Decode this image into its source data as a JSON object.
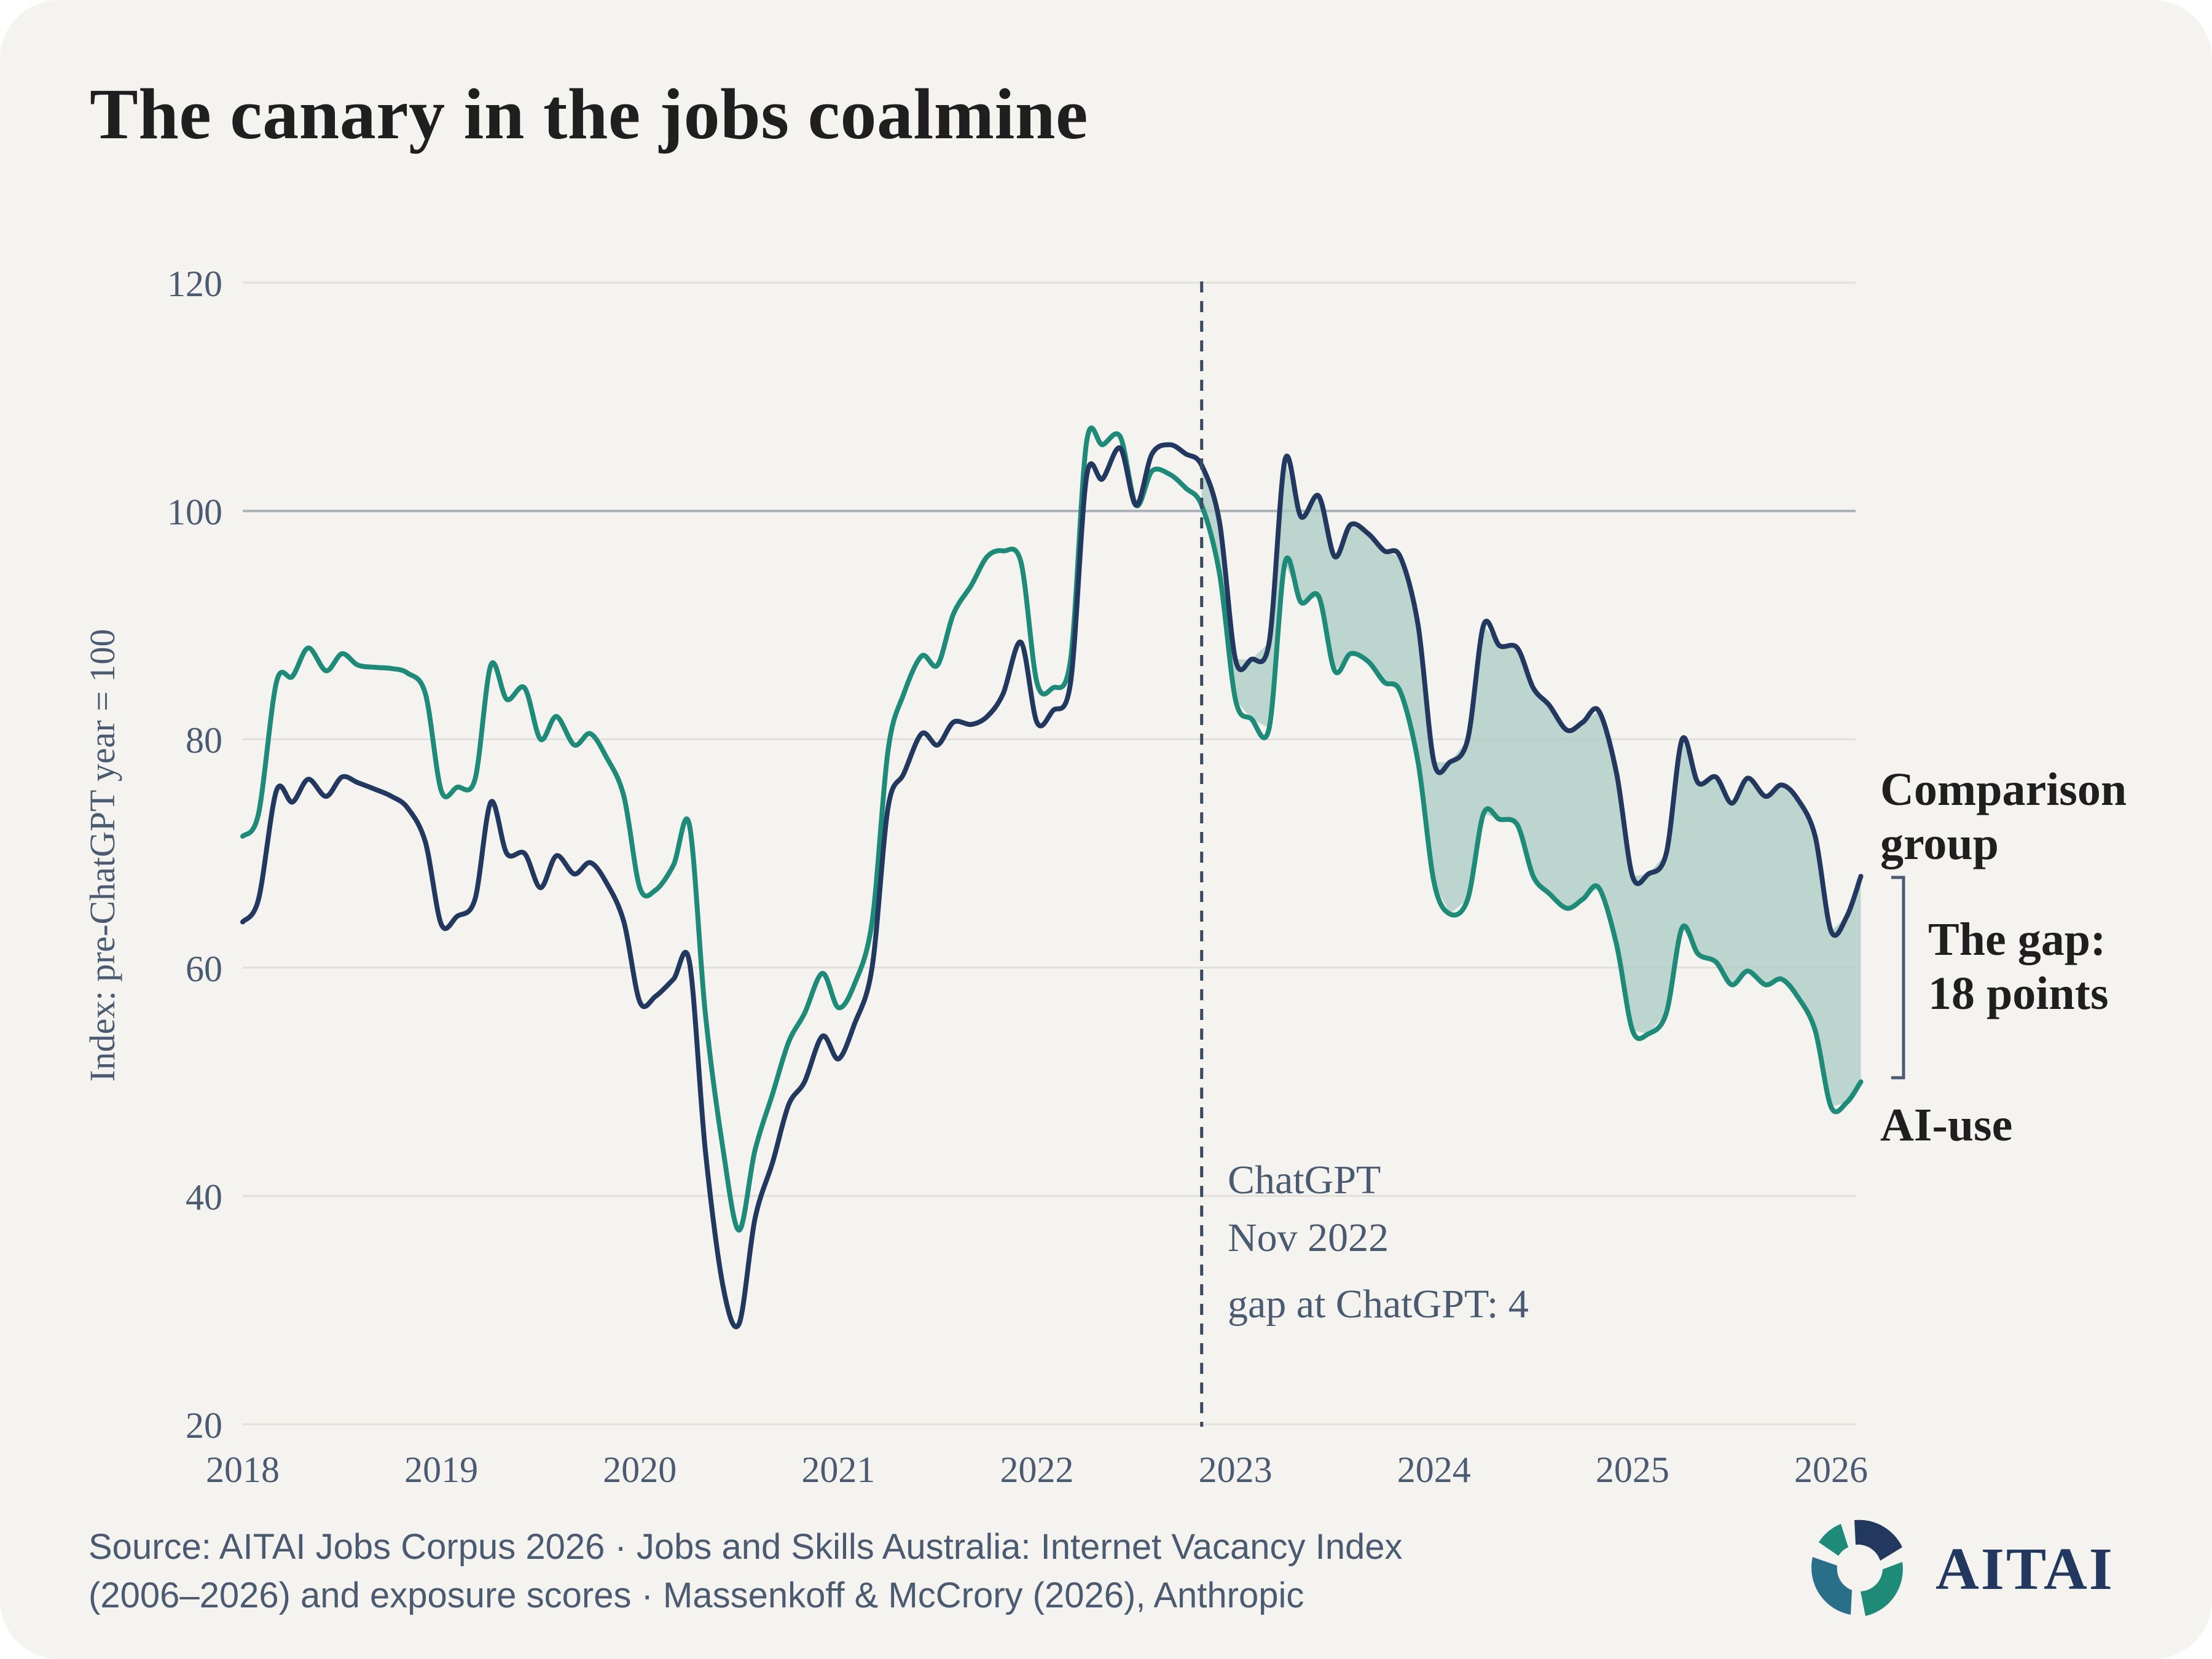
{
  "header": {
    "title": "The canary in the jobs coalmine"
  },
  "chart_data": {
    "type": "line",
    "ylabel": "Index: pre-ChatGPT year = 100",
    "xlabel": "",
    "ylim": [
      20,
      120
    ],
    "xlim": [
      2018,
      2026
    ],
    "y_ticks": [
      "20",
      "40",
      "60",
      "80",
      "100",
      "120"
    ],
    "x_ticks": [
      "2018",
      "2019",
      "2020",
      "2021",
      "2022",
      "2023",
      "2024",
      "2025",
      "2026"
    ],
    "reference_line": 100,
    "grid": true,
    "series": [
      {
        "name": "Comparison group",
        "color": "#22385f",
        "points": [
          [
            2018.0,
            64
          ],
          [
            2018.08,
            66
          ],
          [
            2018.17,
            75.5
          ],
          [
            2018.25,
            74.5
          ],
          [
            2018.33,
            76.5
          ],
          [
            2018.42,
            75
          ],
          [
            2018.5,
            76.7
          ],
          [
            2018.58,
            76.2
          ],
          [
            2018.67,
            75.6
          ],
          [
            2018.75,
            75
          ],
          [
            2018.83,
            74
          ],
          [
            2018.92,
            71
          ],
          [
            2019.0,
            63.8
          ],
          [
            2019.08,
            64.5
          ],
          [
            2019.17,
            66
          ],
          [
            2019.25,
            74.5
          ],
          [
            2019.33,
            70
          ],
          [
            2019.42,
            70
          ],
          [
            2019.5,
            67
          ],
          [
            2019.58,
            69.8
          ],
          [
            2019.67,
            68.2
          ],
          [
            2019.75,
            69.2
          ],
          [
            2019.83,
            67.5
          ],
          [
            2019.92,
            64
          ],
          [
            2020.0,
            57
          ],
          [
            2020.08,
            57.5
          ],
          [
            2020.17,
            59
          ],
          [
            2020.25,
            60.5
          ],
          [
            2020.33,
            44
          ],
          [
            2020.42,
            32
          ],
          [
            2020.5,
            28.8
          ],
          [
            2020.58,
            38
          ],
          [
            2020.67,
            43
          ],
          [
            2020.75,
            48
          ],
          [
            2020.83,
            50
          ],
          [
            2020.92,
            54
          ],
          [
            2021.0,
            52
          ],
          [
            2021.08,
            55
          ],
          [
            2021.17,
            60
          ],
          [
            2021.25,
            74
          ],
          [
            2021.33,
            77
          ],
          [
            2021.42,
            80.5
          ],
          [
            2021.5,
            79.5
          ],
          [
            2021.58,
            81.5
          ],
          [
            2021.67,
            81.3
          ],
          [
            2021.75,
            82
          ],
          [
            2021.83,
            84
          ],
          [
            2021.92,
            88.5
          ],
          [
            2022.0,
            81.5
          ],
          [
            2022.08,
            82.5
          ],
          [
            2022.17,
            85
          ],
          [
            2022.25,
            103
          ],
          [
            2022.33,
            102.8
          ],
          [
            2022.42,
            105.5
          ],
          [
            2022.5,
            100.5
          ],
          [
            2022.58,
            105
          ],
          [
            2022.67,
            105.8
          ],
          [
            2022.75,
            105
          ],
          [
            2022.83,
            104
          ],
          [
            2022.92,
            99
          ],
          [
            2023.0,
            87
          ],
          [
            2023.08,
            87
          ],
          [
            2023.17,
            88.5
          ],
          [
            2023.25,
            104.5
          ],
          [
            2023.33,
            99.5
          ],
          [
            2023.42,
            101.3
          ],
          [
            2023.5,
            96
          ],
          [
            2023.58,
            98.8
          ],
          [
            2023.67,
            98
          ],
          [
            2023.75,
            96.5
          ],
          [
            2023.83,
            96
          ],
          [
            2023.92,
            90
          ],
          [
            2024.0,
            78
          ],
          [
            2024.08,
            78
          ],
          [
            2024.17,
            80
          ],
          [
            2024.25,
            90
          ],
          [
            2024.33,
            88.2
          ],
          [
            2024.42,
            88
          ],
          [
            2024.5,
            84.5
          ],
          [
            2024.58,
            83
          ],
          [
            2024.67,
            80.8
          ],
          [
            2024.75,
            81.5
          ],
          [
            2024.83,
            82.5
          ],
          [
            2024.92,
            77
          ],
          [
            2025.0,
            68
          ],
          [
            2025.08,
            68.2
          ],
          [
            2025.17,
            70
          ],
          [
            2025.25,
            80
          ],
          [
            2025.33,
            76.2
          ],
          [
            2025.42,
            76.7
          ],
          [
            2025.5,
            74.4
          ],
          [
            2025.58,
            76.6
          ],
          [
            2025.67,
            75
          ],
          [
            2025.75,
            76
          ],
          [
            2025.83,
            74.8
          ],
          [
            2025.92,
            71.5
          ],
          [
            2026.0,
            63.2
          ],
          [
            2026.08,
            64.5
          ],
          [
            2026.15,
            68
          ]
        ]
      },
      {
        "name": "AI-use",
        "color": "#1e8a78",
        "points": [
          [
            2018.0,
            71.5
          ],
          [
            2018.08,
            73.5
          ],
          [
            2018.17,
            85
          ],
          [
            2018.25,
            85.5
          ],
          [
            2018.33,
            88
          ],
          [
            2018.42,
            86
          ],
          [
            2018.5,
            87.5
          ],
          [
            2018.58,
            86.5
          ],
          [
            2018.67,
            86.3
          ],
          [
            2018.75,
            86.2
          ],
          [
            2018.83,
            85.8
          ],
          [
            2018.92,
            84
          ],
          [
            2019.0,
            75.5
          ],
          [
            2019.08,
            75.8
          ],
          [
            2019.17,
            76.5
          ],
          [
            2019.25,
            86.5
          ],
          [
            2019.33,
            83.5
          ],
          [
            2019.42,
            84.5
          ],
          [
            2019.5,
            80
          ],
          [
            2019.58,
            82
          ],
          [
            2019.67,
            79.5
          ],
          [
            2019.75,
            80.5
          ],
          [
            2019.83,
            78.5
          ],
          [
            2019.92,
            75
          ],
          [
            2020.0,
            67
          ],
          [
            2020.08,
            66.8
          ],
          [
            2020.17,
            69
          ],
          [
            2020.25,
            72.5
          ],
          [
            2020.33,
            56
          ],
          [
            2020.42,
            44
          ],
          [
            2020.5,
            37
          ],
          [
            2020.58,
            44
          ],
          [
            2020.67,
            49
          ],
          [
            2020.75,
            53.5
          ],
          [
            2020.83,
            56
          ],
          [
            2020.92,
            59.5
          ],
          [
            2021.0,
            56.5
          ],
          [
            2021.08,
            58.5
          ],
          [
            2021.17,
            64
          ],
          [
            2021.25,
            79
          ],
          [
            2021.33,
            84
          ],
          [
            2021.42,
            87.3
          ],
          [
            2021.5,
            86.5
          ],
          [
            2021.58,
            91
          ],
          [
            2021.67,
            93.5
          ],
          [
            2021.75,
            96
          ],
          [
            2021.83,
            96.5
          ],
          [
            2021.92,
            95.5
          ],
          [
            2022.0,
            85
          ],
          [
            2022.08,
            84.5
          ],
          [
            2022.17,
            87
          ],
          [
            2022.25,
            106
          ],
          [
            2022.33,
            105.8
          ],
          [
            2022.42,
            106.5
          ],
          [
            2022.5,
            100.5
          ],
          [
            2022.58,
            103.5
          ],
          [
            2022.67,
            103.2
          ],
          [
            2022.75,
            102
          ],
          [
            2022.83,
            100.5
          ],
          [
            2022.92,
            94.5
          ],
          [
            2023.0,
            83.5
          ],
          [
            2023.08,
            81.8
          ],
          [
            2023.17,
            81
          ],
          [
            2023.25,
            95.5
          ],
          [
            2023.33,
            92
          ],
          [
            2023.42,
            92.5
          ],
          [
            2023.5,
            86
          ],
          [
            2023.58,
            87.5
          ],
          [
            2023.67,
            86.8
          ],
          [
            2023.75,
            85
          ],
          [
            2023.83,
            84.2
          ],
          [
            2023.92,
            78
          ],
          [
            2024.0,
            67.5
          ],
          [
            2024.08,
            64.7
          ],
          [
            2024.17,
            66
          ],
          [
            2024.25,
            73.5
          ],
          [
            2024.33,
            73
          ],
          [
            2024.42,
            72.5
          ],
          [
            2024.5,
            68
          ],
          [
            2024.58,
            66.5
          ],
          [
            2024.67,
            65.2
          ],
          [
            2024.75,
            66
          ],
          [
            2024.83,
            67
          ],
          [
            2024.92,
            62
          ],
          [
            2025.0,
            54.5
          ],
          [
            2025.08,
            54.2
          ],
          [
            2025.17,
            56
          ],
          [
            2025.25,
            63.5
          ],
          [
            2025.33,
            61.2
          ],
          [
            2025.42,
            60.5
          ],
          [
            2025.5,
            58.5
          ],
          [
            2025.58,
            59.7
          ],
          [
            2025.67,
            58.5
          ],
          [
            2025.75,
            59
          ],
          [
            2025.83,
            57.5
          ],
          [
            2025.92,
            54.5
          ],
          [
            2026.0,
            47.8
          ],
          [
            2026.08,
            48.2
          ],
          [
            2026.15,
            50
          ]
        ]
      }
    ],
    "gap_fill": {
      "start": 2023.0,
      "color": "#a9cbc4"
    },
    "annotations": {
      "chatgpt_x": 2022.83,
      "chatgpt_line1": "ChatGPT",
      "chatgpt_line2": "Nov 2022",
      "gap_at_chatgpt": "gap at ChatGPT: 4",
      "comparison_label_1": "Comparison",
      "comparison_label_2": "group",
      "ai_label": "AI-use",
      "gap_label_1": "The gap:",
      "gap_label_2": "18 points"
    }
  },
  "footer": {
    "source_line1": "Source: AITAI Jobs Corpus 2026  ·  Jobs and Skills Australia: Internet Vacancy Index",
    "source_line2": "(2006–2026) and exposure scores  ·  Massenkoff & McCrory (2026), Anthropic",
    "logo_text": "AITAI"
  }
}
